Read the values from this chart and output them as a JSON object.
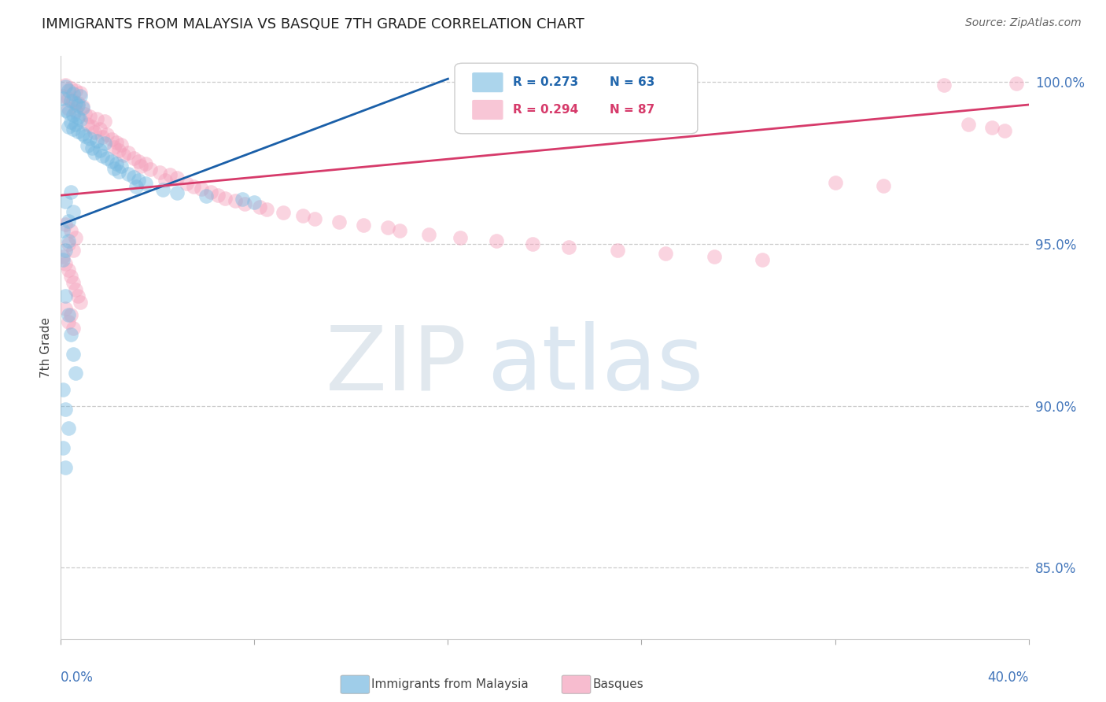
{
  "title": "IMMIGRANTS FROM MALAYSIA VS BASQUE 7TH GRADE CORRELATION CHART",
  "source": "Source: ZipAtlas.com",
  "ylabel": "7th Grade",
  "ylabel_right_ticks": [
    100.0,
    95.0,
    90.0,
    85.0
  ],
  "xmin": 0.0,
  "xmax": 0.04,
  "ymin": 0.828,
  "ymax": 1.008,
  "legend_blue_r": "R = 0.273",
  "legend_blue_n": "N = 63",
  "legend_pink_r": "R = 0.294",
  "legend_pink_n": "N = 87",
  "blue_color": "#76b9e0",
  "pink_color": "#f4a0bb",
  "trendline_blue": "#1a5fa8",
  "trendline_pink": "#d63a6a",
  "blue_trend_x": [
    0.0,
    0.016
  ],
  "blue_trend_y": [
    0.956,
    1.001
  ],
  "pink_trend_x": [
    0.0,
    0.04
  ],
  "pink_trend_y": [
    0.965,
    0.993
  ],
  "blue_scatter_x": [
    0.0002,
    0.0003,
    0.0005,
    0.0008,
    0.0001,
    0.0004,
    0.0006,
    0.0007,
    0.0009,
    0.0002,
    0.0003,
    0.0005,
    0.0007,
    0.0008,
    0.0004,
    0.0006,
    0.0003,
    0.0005,
    0.0007,
    0.0009,
    0.001,
    0.0012,
    0.0015,
    0.0018,
    0.0011,
    0.0013,
    0.0016,
    0.0014,
    0.0017,
    0.0019,
    0.0021,
    0.0023,
    0.0025,
    0.0022,
    0.0024,
    0.0028,
    0.003,
    0.0032,
    0.0035,
    0.0031,
    0.0042,
    0.0048,
    0.006,
    0.0075,
    0.008,
    0.0002,
    0.0003,
    0.0004,
    0.0005,
    0.0006,
    0.0001,
    0.0002,
    0.0003,
    0.0001,
    0.0002,
    0.0001,
    0.0002,
    0.0003,
    0.0001,
    0.0003,
    0.0005,
    0.0002,
    0.0004
  ],
  "blue_scatter_y": [
    0.9985,
    0.9975,
    0.9965,
    0.9958,
    0.995,
    0.9942,
    0.9935,
    0.9928,
    0.992,
    0.9912,
    0.9905,
    0.9898,
    0.9891,
    0.9884,
    0.9877,
    0.987,
    0.9862,
    0.9855,
    0.9848,
    0.984,
    0.9832,
    0.9825,
    0.9818,
    0.981,
    0.9803,
    0.9796,
    0.9789,
    0.9781,
    0.9773,
    0.9765,
    0.9756,
    0.9748,
    0.974,
    0.9732,
    0.9724,
    0.9715,
    0.9706,
    0.9697,
    0.9688,
    0.9678,
    0.9668,
    0.9658,
    0.9648,
    0.9638,
    0.9628,
    0.934,
    0.928,
    0.922,
    0.916,
    0.91,
    0.905,
    0.899,
    0.893,
    0.887,
    0.881,
    0.945,
    0.948,
    0.951,
    0.954,
    0.957,
    0.96,
    0.963,
    0.966
  ],
  "pink_scatter_x": [
    0.0002,
    0.0004,
    0.0006,
    0.0008,
    0.0001,
    0.0003,
    0.0005,
    0.0007,
    0.0009,
    0.0003,
    0.0006,
    0.001,
    0.0012,
    0.0015,
    0.0018,
    0.0011,
    0.0013,
    0.0016,
    0.0014,
    0.0019,
    0.0017,
    0.0021,
    0.0023,
    0.0025,
    0.0022,
    0.0024,
    0.0028,
    0.0026,
    0.003,
    0.0032,
    0.0035,
    0.0033,
    0.0037,
    0.0041,
    0.0045,
    0.0048,
    0.0043,
    0.0052,
    0.0055,
    0.0058,
    0.0062,
    0.0065,
    0.0068,
    0.0072,
    0.0076,
    0.0082,
    0.0085,
    0.0092,
    0.01,
    0.0105,
    0.0115,
    0.0125,
    0.0135,
    0.014,
    0.0152,
    0.0165,
    0.018,
    0.0195,
    0.021,
    0.023,
    0.025,
    0.027,
    0.029,
    0.032,
    0.034,
    0.0365,
    0.0375,
    0.0385,
    0.039,
    0.0395,
    0.0002,
    0.0004,
    0.0006,
    0.0003,
    0.0005,
    0.0001,
    0.0002,
    0.0003,
    0.0004,
    0.0005,
    0.0006,
    0.0007,
    0.0008,
    0.0002,
    0.0004,
    0.0003,
    0.0005
  ],
  "pink_scatter_y": [
    0.999,
    0.9982,
    0.9974,
    0.9966,
    0.9958,
    0.995,
    0.9942,
    0.9934,
    0.9926,
    0.9918,
    0.991,
    0.9902,
    0.9894,
    0.9886,
    0.9878,
    0.987,
    0.9862,
    0.9854,
    0.9846,
    0.9838,
    0.983,
    0.9822,
    0.9814,
    0.9806,
    0.9798,
    0.979,
    0.9782,
    0.9774,
    0.9765,
    0.9756,
    0.9748,
    0.974,
    0.9731,
    0.9722,
    0.9714,
    0.9705,
    0.9696,
    0.9687,
    0.9678,
    0.9669,
    0.966,
    0.9651,
    0.9642,
    0.9633,
    0.9624,
    0.9615,
    0.9606,
    0.9596,
    0.9587,
    0.9578,
    0.9568,
    0.9559,
    0.955,
    0.954,
    0.953,
    0.952,
    0.951,
    0.95,
    0.949,
    0.948,
    0.947,
    0.946,
    0.945,
    0.969,
    0.968,
    0.999,
    0.987,
    0.986,
    0.985,
    0.9995,
    0.956,
    0.954,
    0.952,
    0.95,
    0.948,
    0.946,
    0.944,
    0.942,
    0.94,
    0.938,
    0.936,
    0.934,
    0.932,
    0.93,
    0.928,
    0.926,
    0.924
  ]
}
